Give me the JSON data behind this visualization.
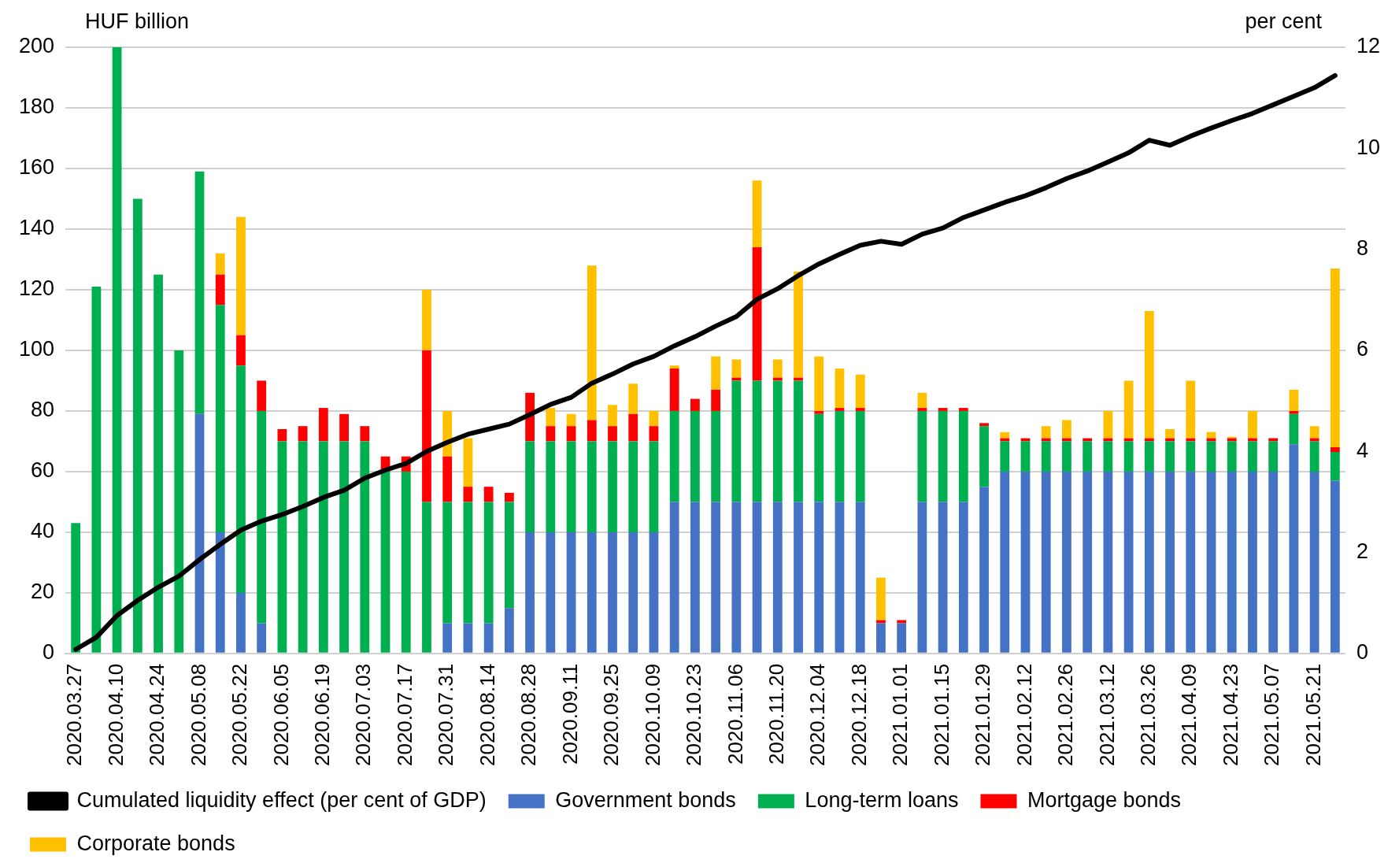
{
  "chart_data": {
    "type": "bar",
    "stacked": true,
    "ylabel": "HUF billion",
    "y2label": "per cent",
    "categories": [
      "2020.03.27",
      null,
      "2020.04.10",
      null,
      "2020.04.24",
      null,
      "2020.05.08",
      null,
      "2020.05.22",
      null,
      "2020.06.05",
      null,
      "2020.06.19",
      null,
      "2020.07.03",
      null,
      "2020.07.17",
      null,
      "2020.07.31",
      null,
      "2020.08.14",
      null,
      "2020.08.28",
      null,
      "2020.09.11",
      null,
      "2020.09.25",
      null,
      "2020.10.09",
      null,
      "2020.10.23",
      null,
      "2020.11.06",
      null,
      "2020.11.20",
      null,
      "2020.12.04",
      null,
      "2020.12.18",
      null,
      "2021.01.01",
      null,
      "2021.01.15",
      null,
      "2021.01.29",
      null,
      "2021.02.12",
      null,
      "2021.02.26",
      null,
      "2021.03.12",
      null,
      "2021.03.26",
      null,
      "2021.04.09",
      null,
      "2021.04.23",
      null,
      "2021.05.07",
      null,
      "2021.05.21",
      null
    ],
    "series": [
      {
        "name": "Government bonds",
        "color": "#4472c4",
        "values": [
          0,
          0,
          0,
          0,
          0,
          0,
          79,
          40,
          20,
          10,
          0,
          0,
          0,
          0,
          0,
          0,
          0,
          0,
          10,
          10,
          10,
          15,
          40,
          40,
          40,
          40,
          40,
          40,
          40,
          50,
          50,
          50,
          50,
          50,
          50,
          50,
          50,
          50,
          50,
          10,
          10,
          50,
          50,
          50,
          55,
          60,
          60,
          60,
          60,
          60,
          60,
          60,
          60,
          60,
          60,
          60,
          60,
          60,
          60,
          69,
          60,
          57
        ]
      },
      {
        "name": "Long-term loans",
        "color": "#00b050",
        "values": [
          43,
          121,
          200,
          150,
          125,
          100,
          80,
          75,
          75,
          70,
          70,
          70,
          70,
          70,
          70,
          60,
          60,
          50,
          40,
          40,
          40,
          35,
          30,
          30,
          30,
          30,
          30,
          30,
          30,
          30,
          30,
          30,
          40,
          40,
          40,
          40,
          29,
          30,
          30,
          0,
          0,
          30,
          30,
          30,
          20,
          10,
          10,
          10,
          10,
          10,
          10,
          10,
          10,
          10,
          10,
          10,
          10,
          10,
          10,
          10,
          10,
          9.5
        ]
      },
      {
        "name": "Mortgage bonds",
        "color": "#ff0000",
        "values": [
          0,
          0,
          0,
          0,
          0,
          0,
          0,
          10,
          10,
          10,
          4,
          5,
          11,
          9,
          5,
          5,
          5,
          50,
          15,
          5,
          5,
          3,
          16,
          5,
          5,
          7,
          5,
          9,
          5,
          14,
          4,
          7,
          1,
          44,
          1,
          1,
          1,
          1,
          1,
          1,
          1,
          1,
          1,
          1,
          1,
          1,
          1,
          1,
          1,
          1,
          1,
          1,
          1,
          1,
          1,
          1,
          1,
          1,
          1,
          1,
          1,
          1.5
        ]
      },
      {
        "name": "Corporate bonds",
        "color": "#ffc000",
        "values": [
          0,
          0,
          0,
          0,
          0,
          0,
          0,
          7,
          39,
          0,
          0,
          0,
          0,
          0,
          0,
          0,
          0,
          20,
          15,
          16,
          0,
          0,
          0,
          6,
          4,
          51,
          7,
          10,
          5,
          1,
          0,
          11,
          6,
          22,
          6,
          35,
          18,
          13,
          11,
          14,
          0,
          5,
          0,
          0,
          0,
          2,
          0,
          4,
          6,
          0,
          9,
          19,
          42,
          3,
          19,
          2,
          0.5,
          9,
          0,
          7,
          4,
          59
        ]
      },
      {
        "name": "Cumulated liquidity effect (per cent of GDP)",
        "type": "line",
        "axis": "y2",
        "color": "#000000",
        "values": [
          0.08,
          0.32,
          0.75,
          1.05,
          1.31,
          1.53,
          1.86,
          2.16,
          2.44,
          2.62,
          2.75,
          2.91,
          3.09,
          3.23,
          3.47,
          3.63,
          3.76,
          4.0,
          4.18,
          4.34,
          4.44,
          4.54,
          4.73,
          4.93,
          5.07,
          5.35,
          5.53,
          5.73,
          5.88,
          6.09,
          6.27,
          6.48,
          6.67,
          7.01,
          7.22,
          7.48,
          7.71,
          7.9,
          8.08,
          8.16,
          8.1,
          8.3,
          8.42,
          8.63,
          8.78,
          8.93,
          9.06,
          9.22,
          9.4,
          9.55,
          9.73,
          9.91,
          10.16,
          10.06,
          10.24,
          10.4,
          10.55,
          10.69,
          10.86,
          11.03,
          11.2,
          11.44
        ]
      }
    ],
    "ylim": [
      0,
      200
    ],
    "yticks": [
      0,
      20,
      40,
      60,
      80,
      100,
      120,
      140,
      160,
      180,
      200
    ],
    "y2lim": [
      0,
      12
    ],
    "y2ticks": [
      0,
      2,
      4,
      6,
      8,
      10,
      12
    ],
    "grid": "y",
    "legend": "bottom",
    "marker": "none",
    "line_style": "solid"
  }
}
